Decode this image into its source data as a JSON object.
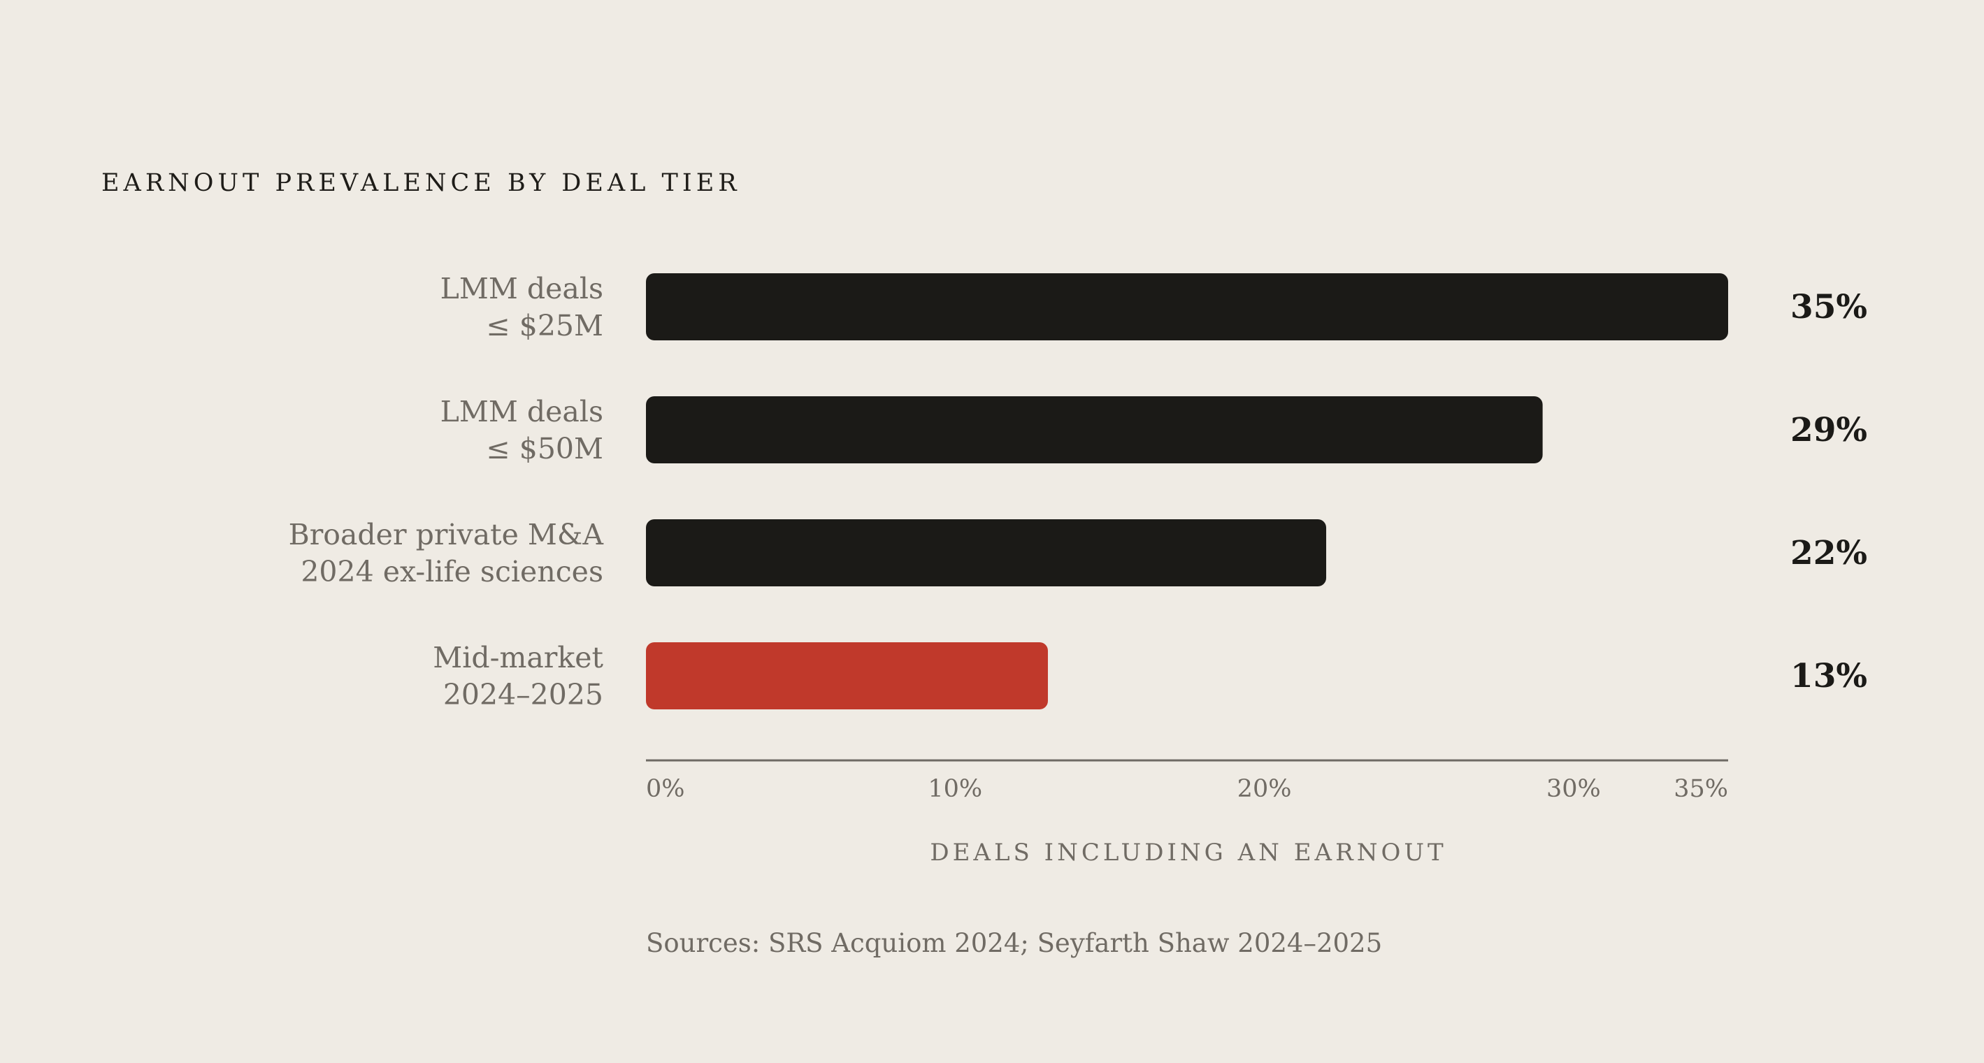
{
  "chart_data": {
    "type": "bar",
    "orientation": "horizontal",
    "title": "EARNOUT PREVALENCE BY DEAL TIER",
    "categories": [
      [
        "LMM deals",
        "≤ $25M"
      ],
      [
        "LMM deals",
        "≤ $50M"
      ],
      [
        "Broader private M&A",
        "2024 ex-life sciences"
      ],
      [
        "Mid-market",
        "2024–2025"
      ]
    ],
    "values": [
      35,
      29,
      22,
      13
    ],
    "value_labels": [
      "35%",
      "29%",
      "22%",
      "13%"
    ],
    "bar_colors": [
      "#1b1a17",
      "#1b1a17",
      "#1b1a17",
      "#c0392b"
    ],
    "xlabel": "DEALS INCLUDING AN EARNOUT",
    "xlim": [
      0,
      35
    ],
    "ticks": [
      0,
      10,
      20,
      30,
      35
    ],
    "tick_labels": [
      "0%",
      "10%",
      "20%",
      "30%",
      "35%"
    ],
    "grid": false,
    "legend": "none"
  },
  "sources": "Sources: SRS Acquiom 2024; Seyfarth Shaw 2024–2025"
}
